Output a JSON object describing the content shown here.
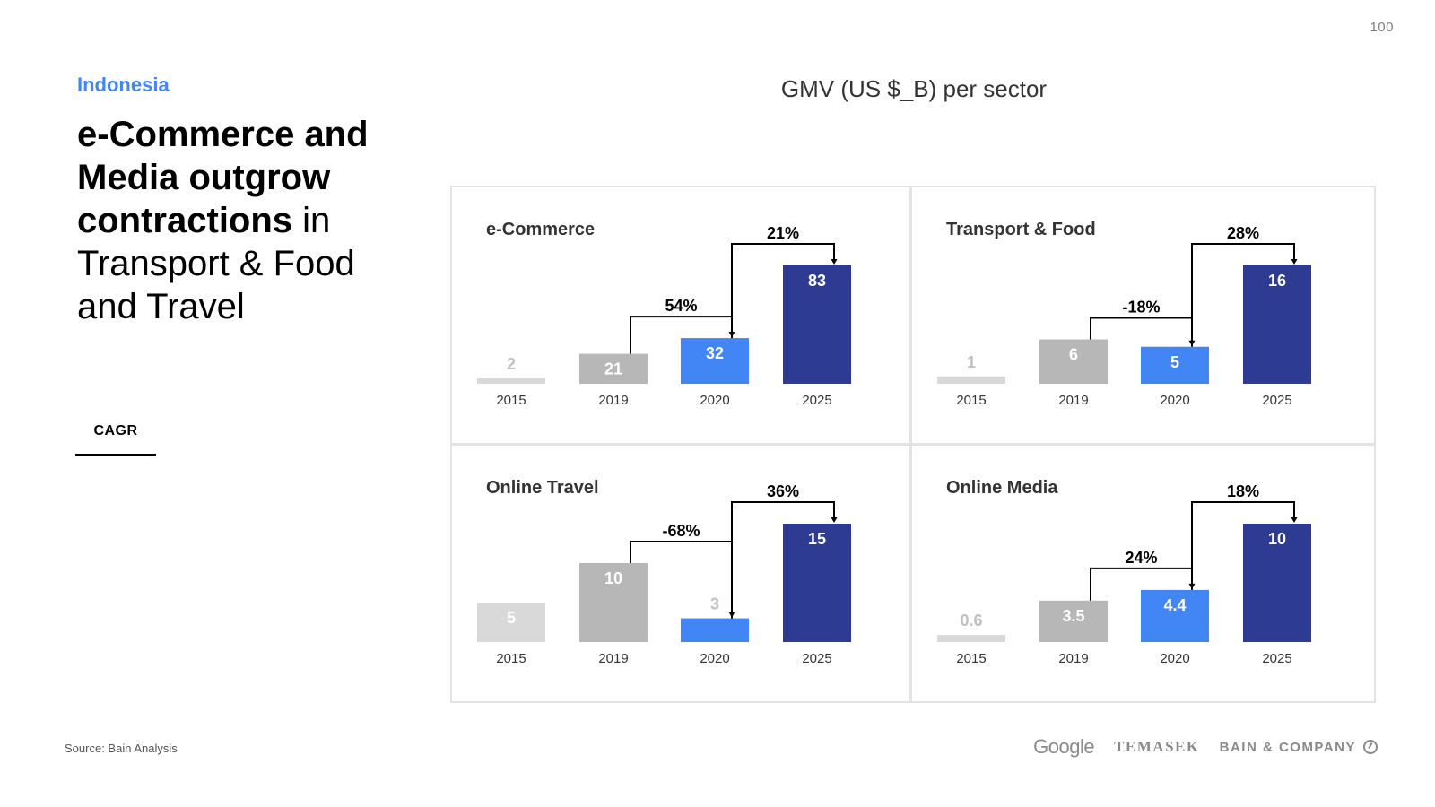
{
  "page_number": "100",
  "header": {
    "country": "Indonesia",
    "headline_bold": "e-Commerce and Media outgrow contractions",
    "headline_regular": " in Transport & Food and Travel"
  },
  "legend": {
    "cagr_label": "CAGR"
  },
  "footer": {
    "source": "Source: Bain Analysis",
    "logos": {
      "google": "Google",
      "temasek": "TEMASEK",
      "bain": "BAIN & COMPANY"
    }
  },
  "colors": {
    "y2015": "#d9d9d9",
    "y2019": "#b7b7b7",
    "y2020": "#4285f4",
    "y2025": "#2e3b93",
    "label_2015": "#c0c0c0",
    "label_inside": "#ffffff",
    "axis_text": "#333333"
  },
  "chart_data": {
    "title": "GMV (US $_B) per sector",
    "type": "bar",
    "categories": [
      "2015",
      "2019",
      "2020",
      "2025"
    ],
    "panels": [
      {
        "name": "e-Commerce",
        "values": [
          2,
          21,
          32,
          83
        ],
        "value_labels": [
          "2",
          "21",
          "32",
          "83"
        ],
        "cagr": [
          {
            "from": "2019",
            "to": "2020",
            "label": "54%"
          },
          {
            "from": "2020",
            "to": "2025",
            "label": "21%"
          }
        ]
      },
      {
        "name": "Transport & Food",
        "values": [
          1,
          6,
          5,
          16
        ],
        "value_labels": [
          "1",
          "6",
          "5",
          "16"
        ],
        "cagr": [
          {
            "from": "2019",
            "to": "2020",
            "label": "-18%"
          },
          {
            "from": "2020",
            "to": "2025",
            "label": "28%"
          }
        ]
      },
      {
        "name": "Online Travel",
        "values": [
          5,
          10,
          3,
          15
        ],
        "value_labels": [
          "5",
          "10",
          "3",
          "15"
        ],
        "cagr": [
          {
            "from": "2019",
            "to": "2020",
            "label": "-68%"
          },
          {
            "from": "2020",
            "to": "2025",
            "label": "36%"
          }
        ]
      },
      {
        "name": "Online Media",
        "values": [
          0.6,
          3.5,
          4.4,
          10
        ],
        "value_labels": [
          "0.6",
          "3.5",
          "4.4",
          "10"
        ],
        "cagr": [
          {
            "from": "2019",
            "to": "2020",
            "label": "24%"
          },
          {
            "from": "2020",
            "to": "2025",
            "label": "18%"
          }
        ]
      }
    ]
  }
}
